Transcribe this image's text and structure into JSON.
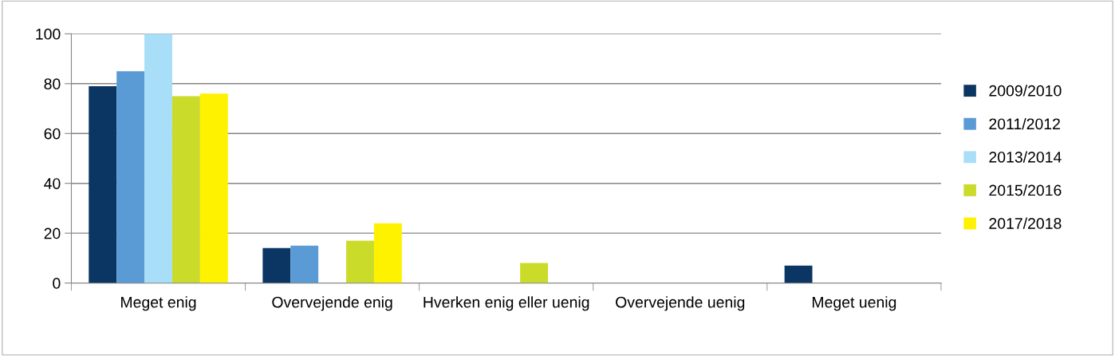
{
  "chart_data": {
    "type": "bar",
    "categories": [
      "Meget enig",
      "Overvejende enig",
      "Hverken enig eller uenig",
      "Overvejende uenig",
      "Meget uenig"
    ],
    "series": [
      {
        "name": "2009/2010",
        "color": "#0b3563",
        "values": [
          79,
          14,
          0,
          0,
          7
        ]
      },
      {
        "name": "2011/2012",
        "color": "#5b9bd5",
        "values": [
          85,
          15,
          0,
          0,
          0
        ]
      },
      {
        "name": "2013/2014",
        "color": "#a8def7",
        "values": [
          100,
          0,
          0,
          0,
          0
        ]
      },
      {
        "name": "2015/2016",
        "color": "#cbdb2a",
        "values": [
          75,
          17,
          8,
          0,
          0
        ]
      },
      {
        "name": "2017/2018",
        "color": "#fff200",
        "values": [
          76,
          24,
          0,
          0,
          0
        ]
      }
    ],
    "ylim": [
      0,
      100
    ],
    "yticks": [
      0,
      20,
      40,
      60,
      80,
      100
    ],
    "grid": "y",
    "legend": "right"
  }
}
